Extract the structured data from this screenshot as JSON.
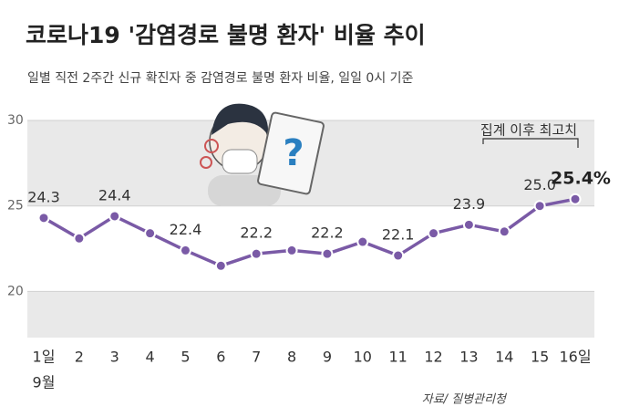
{
  "chart_data": {
    "type": "line",
    "title": "코로나19 '감염경로 불명 환자' 비율 추이",
    "subtitle": "일별 직전 2주간 신규 확진자 중 감염경로 불명 환자 비율, 일일 0시 기준",
    "categories": [
      "1일",
      "2",
      "3",
      "4",
      "5",
      "6",
      "7",
      "8",
      "9",
      "10",
      "11",
      "12",
      "13",
      "14",
      "15",
      "16일"
    ],
    "month_label": "9월",
    "values": [
      24.3,
      23.1,
      24.4,
      23.4,
      22.4,
      21.5,
      22.2,
      22.4,
      22.2,
      22.9,
      22.1,
      23.4,
      23.9,
      23.5,
      25.0,
      25.4
    ],
    "value_labels": [
      "24.3",
      null,
      "24.4",
      null,
      "22.4",
      null,
      "22.2",
      null,
      "22.2",
      null,
      "22.1",
      null,
      "23.9",
      null,
      "25.0",
      "25.4%"
    ],
    "color": "#7a5aa6",
    "ylim": [
      17.3,
      30
    ],
    "yticks": [
      20,
      25,
      30
    ],
    "annotation": "집계 이후 최고치",
    "source": "자료/ 질병관리청"
  }
}
